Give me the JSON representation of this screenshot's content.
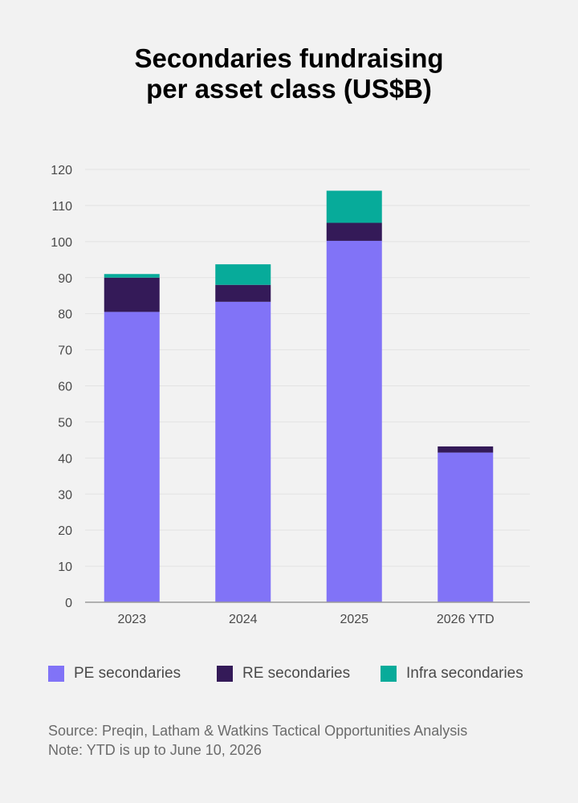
{
  "colors": {
    "pe": "#8173f7",
    "re": "#341a58",
    "infra": "#07ab9a",
    "axis": "#9a9a9a",
    "grid": "#e3e3e3",
    "tick_text": "#4a4a4a"
  },
  "chart_data": {
    "type": "bar",
    "stacked": true,
    "title": "Secondaries fundraising per asset class (US$B)",
    "title_lines": [
      "Secondaries fundraising",
      "per asset class (US$B)"
    ],
    "categories": [
      "2023",
      "2024",
      "2025",
      "2026 YTD"
    ],
    "series": [
      {
        "name": "PE secondaries",
        "color_key": "pe",
        "values": [
          80.5,
          83.3,
          100.2,
          41.5
        ]
      },
      {
        "name": "RE secondaries",
        "color_key": "re",
        "values": [
          9.5,
          4.7,
          5.0,
          1.7
        ]
      },
      {
        "name": "Infra secondaries",
        "color_key": "infra",
        "values": [
          1.0,
          5.7,
          8.9,
          0
        ]
      }
    ],
    "y_ticks": [
      0,
      10,
      20,
      30,
      40,
      50,
      60,
      70,
      80,
      90,
      100,
      110,
      120
    ],
    "ylim": [
      0,
      120
    ],
    "grid": true,
    "legend_position": "bottom"
  },
  "footer": {
    "source": "Source: Preqin, Latham & Watkins Tactical Opportunities Analysis",
    "note": "Note: YTD is up to June 10, 2026"
  }
}
